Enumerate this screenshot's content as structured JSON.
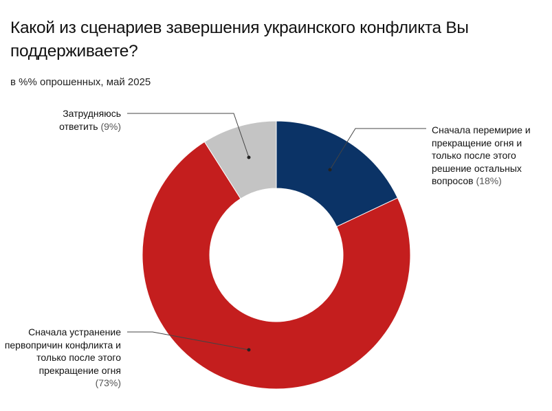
{
  "chart_data": {
    "type": "pie",
    "donut": true,
    "title": "Какой из сценариев завершения украинского конфликта Вы поддерживаете?",
    "subtitle": "в %% опрошенных, май 2025",
    "slices": [
      {
        "label": "Сначала перемирие и прекращение огня и только после этого решение остальных вопросов",
        "value": 18,
        "value_label": "(18%)",
        "color": "#0b3366"
      },
      {
        "label": "Сначала устранение первопричин конфликта и только после этого прекращение огня",
        "value": 73,
        "value_label": "(73%)",
        "color": "#c41e1e"
      },
      {
        "label": "Затрудняюсь ответить",
        "value": 9,
        "value_label": "(9%)",
        "color": "#c4c4c4"
      }
    ]
  }
}
